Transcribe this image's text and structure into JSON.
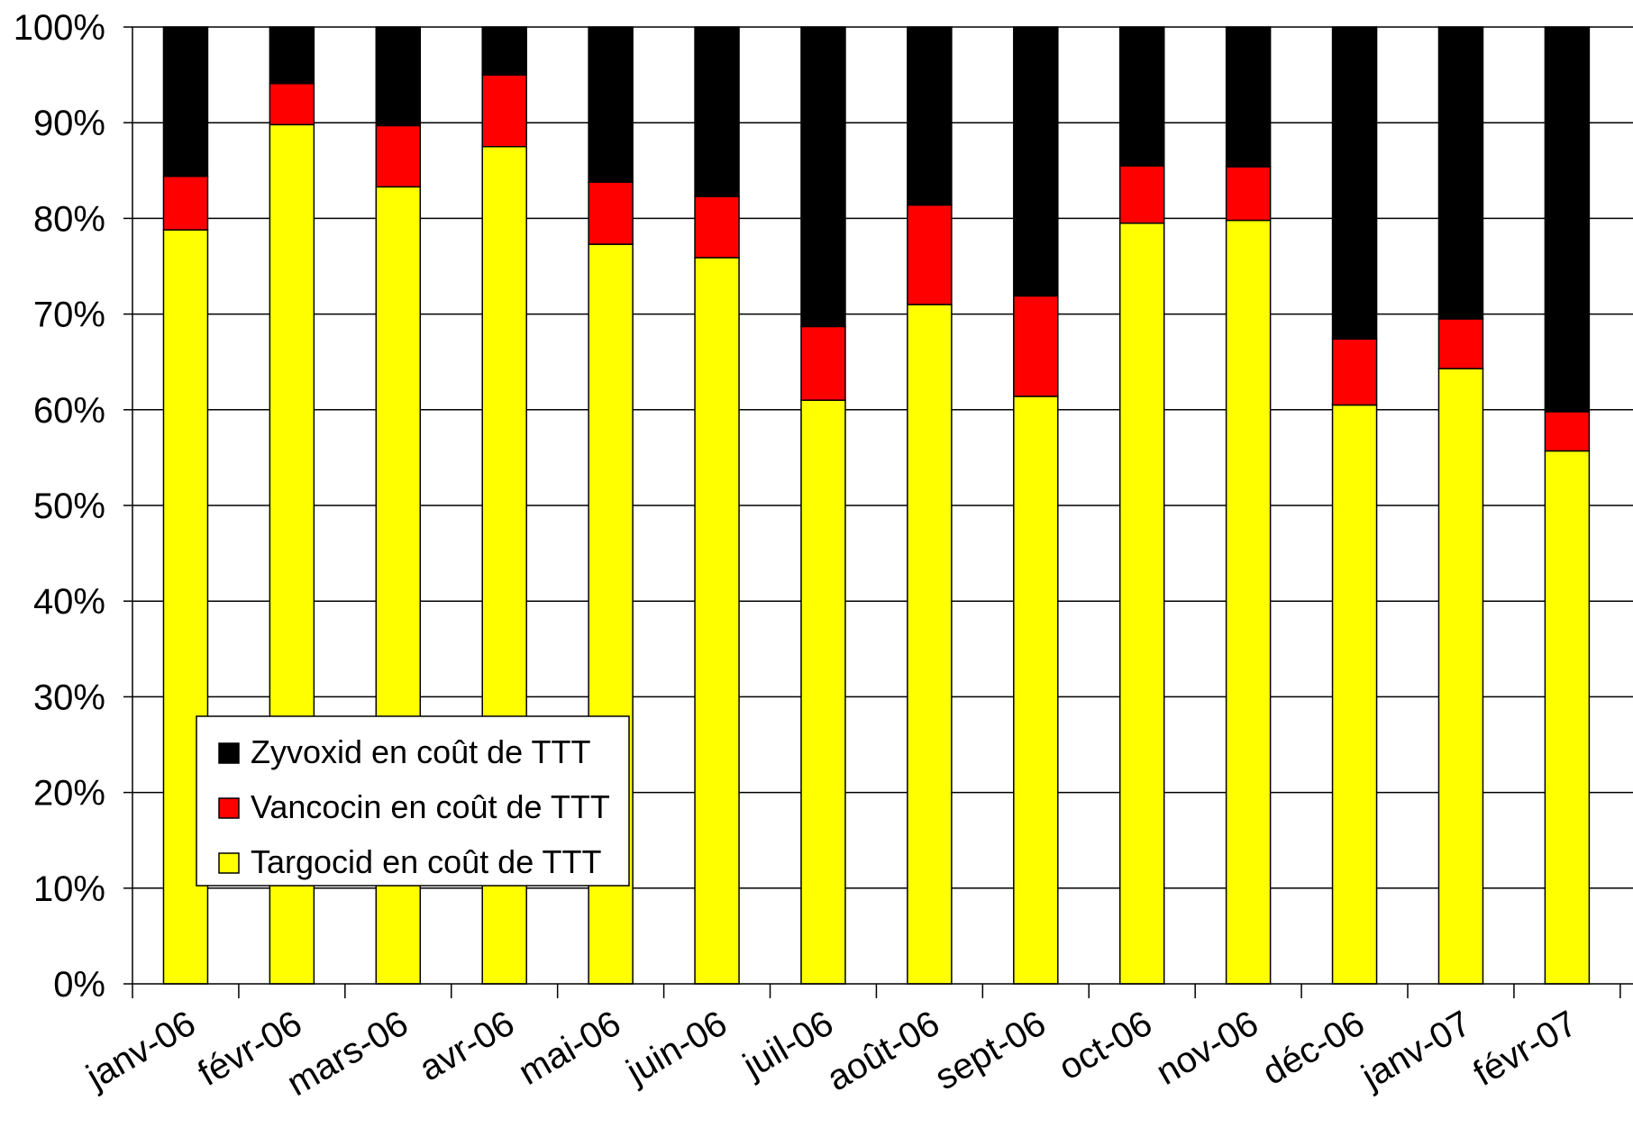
{
  "chart_data": {
    "type": "bar",
    "stacked": true,
    "normalized": true,
    "categories": [
      "janv-06",
      "févr-06",
      "mars-06",
      "avr-06",
      "mai-06",
      "juin-06",
      "juil-06",
      "août-06",
      "sept-06",
      "oct-06",
      "nov-06",
      "déc-06",
      "janv-07",
      "févr-07"
    ],
    "series": [
      {
        "name": "Targocid en coût de TTT",
        "color": "#ffff00",
        "values": [
          78.8,
          89.8,
          83.3,
          87.5,
          77.3,
          75.9,
          61.0,
          71.0,
          61.4,
          79.5,
          79.8,
          60.5,
          64.3,
          55.7
        ]
      },
      {
        "name": "Vancocin en coût de TTT",
        "color": "#ff0000",
        "values": [
          5.6,
          4.3,
          6.4,
          7.5,
          6.5,
          6.4,
          7.7,
          10.4,
          10.5,
          6.0,
          5.6,
          6.9,
          5.2,
          4.1
        ]
      },
      {
        "name": "Zyvoxid en coût de TTT",
        "color": "#000000",
        "values": [
          15.6,
          5.9,
          10.3,
          5.0,
          16.2,
          17.7,
          31.3,
          18.6,
          28.1,
          14.5,
          14.6,
          32.6,
          30.5,
          40.2
        ]
      }
    ],
    "legend_order": [
      "Zyvoxid en coût de TTT",
      "Vancocin en coût de TTT",
      "Targocid en coût de TTT"
    ],
    "yticks": [
      "0%",
      "10%",
      "20%",
      "30%",
      "40%",
      "50%",
      "60%",
      "70%",
      "80%",
      "90%",
      "100%"
    ],
    "ylim": [
      0,
      100
    ],
    "grid": true,
    "legend_position": "bottom-left",
    "title": "",
    "xlabel": "",
    "ylabel": ""
  }
}
